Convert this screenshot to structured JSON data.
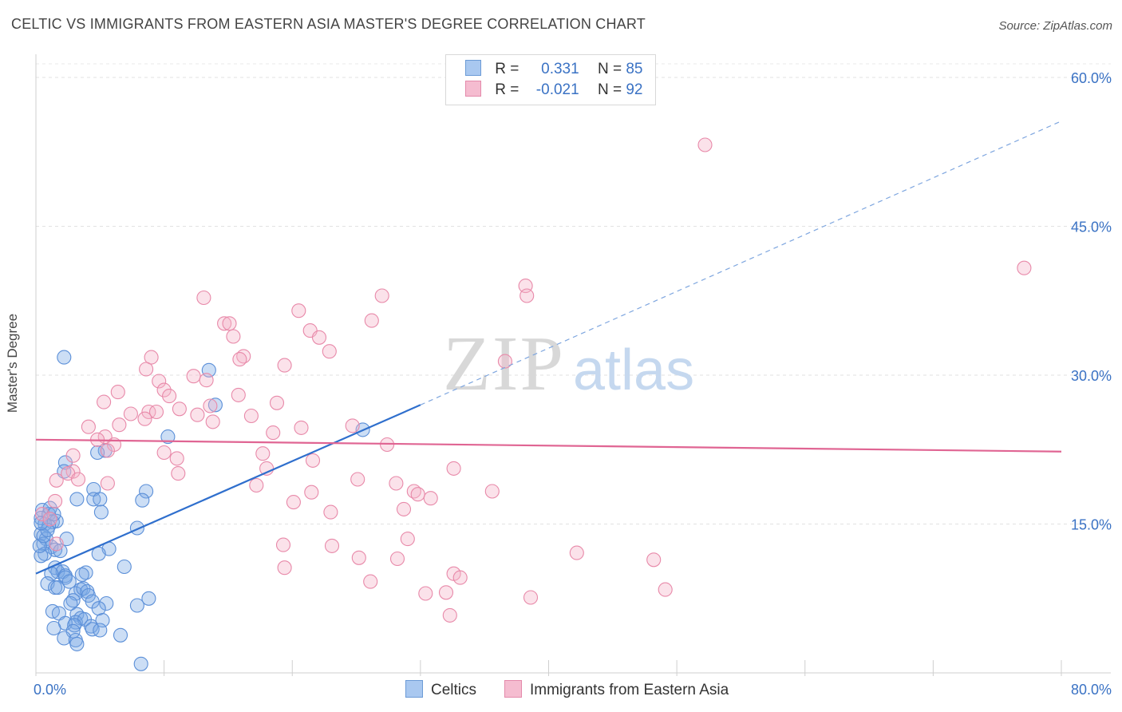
{
  "header": {
    "title": "CELTIC VS IMMIGRANTS FROM EASTERN ASIA MASTER'S DEGREE CORRELATION CHART",
    "source": "Source: ZipAtlas.com"
  },
  "watermark": {
    "zip": "ZIP",
    "atlas": "atlas"
  },
  "legend": {
    "rows": [
      {
        "r_label": "R =",
        "r_value": " 0.331",
        "n_label": "N =",
        "n_value": "85",
        "color": "#a9c8f0",
        "border": "#6c9bd6"
      },
      {
        "r_label": "R =",
        "r_value": "-0.021",
        "n_label": "N =",
        "n_value": "92",
        "color": "#f5bcd0",
        "border": "#e48aab"
      }
    ]
  },
  "chart_data": {
    "type": "scatter",
    "title": "CELTIC VS IMMIGRANTS FROM EASTERN ASIA MASTER'S DEGREE CORRELATION CHART",
    "ylabel": "Master's Degree",
    "xlim": [
      0,
      80
    ],
    "ylim": [
      0,
      60
    ],
    "x_tick_labels": [
      "0.0%",
      "80.0%"
    ],
    "y_ticks": [
      15,
      30,
      45,
      60
    ],
    "y_tick_labels": [
      "15.0%",
      "30.0%",
      "45.0%",
      "60.0%"
    ],
    "grid": true,
    "series": [
      {
        "name": "Celtics",
        "color": "#7aa8e6",
        "stroke": "#5b8fd8",
        "trend": {
          "x": [
            0,
            30
          ],
          "y": [
            10.0,
            27.0
          ],
          "extended_x": [
            30,
            80
          ],
          "extended_y": [
            27.0,
            55.6
          ],
          "color": "#2f6fcd"
        },
        "points": [
          [
            2.2,
            31.8
          ],
          [
            13.5,
            30.5
          ],
          [
            14.0,
            27.0
          ],
          [
            25.5,
            24.5
          ],
          [
            10.3,
            23.8
          ],
          [
            5.4,
            22.4
          ],
          [
            4.8,
            22.2
          ],
          [
            2.3,
            21.2
          ],
          [
            2.2,
            20.3
          ],
          [
            3.2,
            17.5
          ],
          [
            4.5,
            18.5
          ],
          [
            8.6,
            18.3
          ],
          [
            4.5,
            17.5
          ],
          [
            8.3,
            17.4
          ],
          [
            5.0,
            17.5
          ],
          [
            5.1,
            16.2
          ],
          [
            0.5,
            16.4
          ],
          [
            1.0,
            16.0
          ],
          [
            1.1,
            16.6
          ],
          [
            0.4,
            15.6
          ],
          [
            1.3,
            15.2
          ],
          [
            1.6,
            15.3
          ],
          [
            0.7,
            15.0
          ],
          [
            1.0,
            14.8
          ],
          [
            7.9,
            14.6
          ],
          [
            0.4,
            14.0
          ],
          [
            2.4,
            13.5
          ],
          [
            0.8,
            13.5
          ],
          [
            0.6,
            13.0
          ],
          [
            1.2,
            12.7
          ],
          [
            1.5,
            12.4
          ],
          [
            1.9,
            12.3
          ],
          [
            5.7,
            12.5
          ],
          [
            0.7,
            12.0
          ],
          [
            0.4,
            11.8
          ],
          [
            4.9,
            12.0
          ],
          [
            6.9,
            10.7
          ],
          [
            1.5,
            10.6
          ],
          [
            1.7,
            10.2
          ],
          [
            2.1,
            10.2
          ],
          [
            1.2,
            10.0
          ],
          [
            2.3,
            9.8
          ],
          [
            3.9,
            10.1
          ],
          [
            2.3,
            9.6
          ],
          [
            0.9,
            9.0
          ],
          [
            1.5,
            8.6
          ],
          [
            1.7,
            8.6
          ],
          [
            3.5,
            8.4
          ],
          [
            3.1,
            8.0
          ],
          [
            3.7,
            8.5
          ],
          [
            4.0,
            8.2
          ],
          [
            4.1,
            7.8
          ],
          [
            8.8,
            7.5
          ],
          [
            2.9,
            7.3
          ],
          [
            2.7,
            7.0
          ],
          [
            4.4,
            7.2
          ],
          [
            5.5,
            7.0
          ],
          [
            4.9,
            6.5
          ],
          [
            7.9,
            6.8
          ],
          [
            1.3,
            6.2
          ],
          [
            1.8,
            6.0
          ],
          [
            3.2,
            5.9
          ],
          [
            3.5,
            5.5
          ],
          [
            5.2,
            5.3
          ],
          [
            3.1,
            5.1
          ],
          [
            3.8,
            5.4
          ],
          [
            2.3,
            5.0
          ],
          [
            3.0,
            4.8
          ],
          [
            1.4,
            4.5
          ],
          [
            2.9,
            4.2
          ],
          [
            4.3,
            4.7
          ],
          [
            4.4,
            4.4
          ],
          [
            5.0,
            4.3
          ],
          [
            6.6,
            3.8
          ],
          [
            2.2,
            3.5
          ],
          [
            3.1,
            3.3
          ],
          [
            3.2,
            2.9
          ],
          [
            8.2,
            0.9
          ],
          [
            0.3,
            12.8
          ],
          [
            0.6,
            13.8
          ],
          [
            1.4,
            16.0
          ],
          [
            0.9,
            14.4
          ],
          [
            3.6,
            9.9
          ],
          [
            2.6,
            9.2
          ],
          [
            0.4,
            15.1
          ]
        ]
      },
      {
        "name": "Immigrants from Eastern Asia",
        "color": "#f4b3c8",
        "stroke": "#e889a9",
        "trend": {
          "x": [
            0,
            80
          ],
          "y": [
            23.5,
            22.3
          ],
          "color": "#e06593"
        },
        "points": [
          [
            52.2,
            53.2
          ],
          [
            77.1,
            40.8
          ],
          [
            38.2,
            39.0
          ],
          [
            13.1,
            37.8
          ],
          [
            27.0,
            38.0
          ],
          [
            38.3,
            38.0
          ],
          [
            20.5,
            36.5
          ],
          [
            14.7,
            35.2
          ],
          [
            15.1,
            35.2
          ],
          [
            26.2,
            35.5
          ],
          [
            21.4,
            34.5
          ],
          [
            22.1,
            33.8
          ],
          [
            22.9,
            32.4
          ],
          [
            15.4,
            33.9
          ],
          [
            9.0,
            31.8
          ],
          [
            16.2,
            31.9
          ],
          [
            15.9,
            31.6
          ],
          [
            36.6,
            31.4
          ],
          [
            19.4,
            31.0
          ],
          [
            8.6,
            30.6
          ],
          [
            12.3,
            29.9
          ],
          [
            9.6,
            29.4
          ],
          [
            13.3,
            29.5
          ],
          [
            6.4,
            28.3
          ],
          [
            10.0,
            28.5
          ],
          [
            15.8,
            28.0
          ],
          [
            10.4,
            27.9
          ],
          [
            5.3,
            27.3
          ],
          [
            18.8,
            27.2
          ],
          [
            13.6,
            26.9
          ],
          [
            8.8,
            26.3
          ],
          [
            11.2,
            26.6
          ],
          [
            7.4,
            26.1
          ],
          [
            9.4,
            26.3
          ],
          [
            12.6,
            26.0
          ],
          [
            16.8,
            25.9
          ],
          [
            8.5,
            25.6
          ],
          [
            13.8,
            25.3
          ],
          [
            6.5,
            25.0
          ],
          [
            4.1,
            24.8
          ],
          [
            24.7,
            24.9
          ],
          [
            20.7,
            24.7
          ],
          [
            18.5,
            24.2
          ],
          [
            5.4,
            23.8
          ],
          [
            4.8,
            23.5
          ],
          [
            6.1,
            23.0
          ],
          [
            27.4,
            23.0
          ],
          [
            5.6,
            22.4
          ],
          [
            10.0,
            22.2
          ],
          [
            17.7,
            22.1
          ],
          [
            2.9,
            21.9
          ],
          [
            11.0,
            21.6
          ],
          [
            21.6,
            21.4
          ],
          [
            32.6,
            20.6
          ],
          [
            18.0,
            20.6
          ],
          [
            2.9,
            20.3
          ],
          [
            2.5,
            20.1
          ],
          [
            11.1,
            20.1
          ],
          [
            3.3,
            19.5
          ],
          [
            1.6,
            19.4
          ],
          [
            25.1,
            19.5
          ],
          [
            5.6,
            19.1
          ],
          [
            17.2,
            18.9
          ],
          [
            28.1,
            19.1
          ],
          [
            35.6,
            18.3
          ],
          [
            21.5,
            18.2
          ],
          [
            29.5,
            18.3
          ],
          [
            29.8,
            18.0
          ],
          [
            30.8,
            17.6
          ],
          [
            1.5,
            17.3
          ],
          [
            20.1,
            17.2
          ],
          [
            28.7,
            16.5
          ],
          [
            23.0,
            16.2
          ],
          [
            0.5,
            16.0
          ],
          [
            1.1,
            15.5
          ],
          [
            29.0,
            13.5
          ],
          [
            1.6,
            13.0
          ],
          [
            19.3,
            12.9
          ],
          [
            23.1,
            12.8
          ],
          [
            42.2,
            12.1
          ],
          [
            25.2,
            11.6
          ],
          [
            28.2,
            11.5
          ],
          [
            48.2,
            11.4
          ],
          [
            19.4,
            10.6
          ],
          [
            32.6,
            10.0
          ],
          [
            33.1,
            9.6
          ],
          [
            26.1,
            9.2
          ],
          [
            30.4,
            8.0
          ],
          [
            49.1,
            8.4
          ],
          [
            32.0,
            8.1
          ],
          [
            38.6,
            7.6
          ],
          [
            32.3,
            5.8
          ]
        ]
      }
    ]
  },
  "bottom_legend": [
    {
      "label": "Celtics",
      "color": "#a9c8f0",
      "border": "#6c9bd6"
    },
    {
      "label": "Immigrants from Eastern Asia",
      "color": "#f5bcd0",
      "border": "#e48aab"
    }
  ]
}
